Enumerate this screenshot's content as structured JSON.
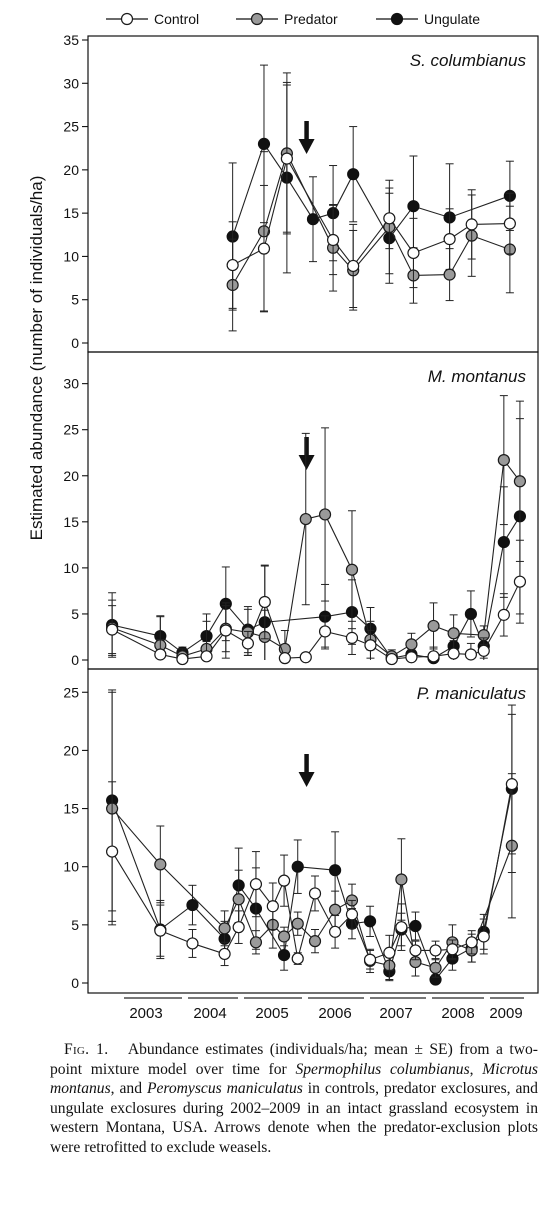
{
  "chart_data": {
    "type": "line",
    "ylabel": "Estimated abundance (number of individuals/ha)",
    "legend": [
      "Control",
      "Predator",
      "Ungulate"
    ],
    "series_styles": {
      "Control": {
        "fill": "#ffffff",
        "stroke": "#1a1a1a"
      },
      "Predator": {
        "fill": "#9a9a9a",
        "stroke": "#1a1a1a"
      },
      "Ungulate": {
        "fill": "#111111",
        "stroke": "#111111"
      }
    },
    "year_labels": [
      "2003",
      "2004",
      "2005",
      "2006",
      "2007",
      "2008",
      "2009"
    ],
    "panels": [
      {
        "title": "S. columbianus",
        "ylim": [
          0,
          35
        ],
        "yticks": [
          0,
          5,
          10,
          15,
          20,
          25,
          30,
          35
        ],
        "arrow_x": 4.84,
        "x": [
          3.0,
          3.78,
          4.35,
          5.0,
          5.5,
          6.0,
          6.9,
          7.5,
          8.4,
          8.95,
          9.9
        ],
        "series": [
          {
            "name": "Control",
            "values": [
              9.0,
              10.9,
              21.3,
              11.9,
              8.9,
              14.4,
              10.4,
              12.0,
              13.7,
              13.8
            ],
            "errors": [
              5.0,
              7.3,
              8.5,
              4.0,
              4.8,
              3.5,
              4.0,
              3.5,
              4.0,
              3.5
            ],
            "idx": [
              0,
              1,
              2,
              4,
              5,
              6,
              7,
              8,
              9,
              10
            ]
          },
          {
            "name": "Predator",
            "values": [
              6.7,
              12.9,
              21.9,
              11.0,
              8.4,
              13.4,
              7.8,
              7.9,
              12.4,
              10.8
            ],
            "errors": [
              5.3,
              9.2,
              9.3,
              5.0,
              4.6,
              5.4,
              3.2,
              3.0,
              4.7,
              5.0
            ],
            "idx": [
              0,
              1,
              2,
              4,
              5,
              6,
              7,
              8,
              9,
              10
            ]
          },
          {
            "name": "Ungulate",
            "values": [
              12.3,
              23.0,
              19.1,
              14.3,
              15.0,
              19.5,
              12.1,
              15.8,
              14.5,
              17.0
            ],
            "errors": [
              8.5,
              9.1,
              11.0,
              4.9,
              5.5,
              5.5,
              5.2,
              5.8,
              6.2,
              4.0
            ],
            "idx": [
              0,
              1,
              2,
              3,
              4,
              5,
              6,
              7,
              8,
              10
            ]
          }
        ]
      },
      {
        "title": "M. montanus",
        "ylim": [
          0,
          33
        ],
        "yticks": [
          0,
          5,
          10,
          15,
          20,
          25,
          30
        ],
        "arrow_x": 4.84,
        "x": [
          0.0,
          1.2,
          1.75,
          2.35,
          2.83,
          3.38,
          3.8,
          4.3,
          4.82,
          5.3,
          5.97,
          6.43,
          6.96,
          7.45,
          8.0,
          8.5,
          8.93,
          9.25,
          9.75,
          10.15
        ],
        "series": [
          {
            "name": "Control",
            "values": [
              3.3,
              0.6,
              0.1,
              0.4,
              3.2,
              1.8,
              6.3,
              0.2,
              0.3,
              3.1,
              2.4,
              1.6,
              0.1,
              0.3,
              0.4,
              0.7,
              0.6,
              1.0,
              4.9,
              8.5
            ],
            "errors": [
              2.6,
              1.6,
              0.3,
              1.6,
              3.0,
              1.3,
              4.0,
              0.3,
              0.3,
              1.7,
              1.8,
              1.6,
              0.2,
              0.8,
              1.0,
              1.4,
              1.2,
              1.4,
              2.3,
              4.5
            ]
          },
          {
            "name": "Predator",
            "values": [
              3.5,
              1.6,
              0.4,
              1.2,
              3.4,
              3.0,
              2.5,
              1.2,
              15.3,
              15.8,
              9.8,
              2.2,
              0.4,
              1.7,
              3.7,
              2.9,
              2.7,
              21.7,
              19.4
            ],
            "errors": [
              3.0,
              3.1,
              0.8,
              3.0,
              2.5,
              2.5,
              2.9,
              2.0,
              9.3,
              9.4,
              6.4,
              2.0,
              0.7,
              1.2,
              2.5,
              2.0,
              1.0,
              7.0,
              8.7
            ],
            "idx": [
              0,
              1,
              2,
              3,
              4,
              5,
              6,
              7,
              8,
              9,
              10,
              11,
              12,
              13,
              14,
              15,
              17,
              18,
              19
            ]
          },
          {
            "name": "Ungulate",
            "values": [
              3.8,
              2.6,
              0.8,
              2.6,
              6.1,
              3.3,
              4.1,
              4.7,
              5.2,
              3.4,
              0.2,
              0.6,
              0.2,
              1.5,
              5.0,
              1.5,
              12.8,
              15.6
            ],
            "errors": [
              3.5,
              2.2,
              0.6,
              2.4,
              4.0,
              2.5,
              6.1,
              3.5,
              3.5,
              2.3,
              0.4,
              0.8,
              0.5,
              1.5,
              2.5,
              1.3,
              6.0,
              10.6
            ],
            "idx": [
              0,
              1,
              2,
              3,
              4,
              5,
              6,
              9,
              10,
              11,
              12,
              13,
              14,
              15,
              16,
              17,
              18,
              19
            ]
          }
        ]
      },
      {
        "title": "P. maniculatus",
        "ylim": [
          0,
          27
        ],
        "yticks": [
          0,
          5,
          10,
          15,
          20,
          25
        ],
        "arrow_x": 4.84,
        "x": [
          0.0,
          1.2,
          2.0,
          2.8,
          3.15,
          3.58,
          4.0,
          4.28,
          4.62,
          5.05,
          5.55,
          5.97,
          6.42,
          6.9,
          7.2,
          7.55,
          8.05,
          8.47,
          8.95,
          9.25,
          9.95
        ],
        "series": [
          {
            "name": "Control",
            "values": [
              11.3,
              4.5,
              3.4,
              2.5,
              4.8,
              8.5,
              6.6,
              8.8,
              2.1,
              7.7,
              4.4,
              5.9,
              2.0,
              2.6,
              4.8,
              2.8,
              2.8,
              2.9,
              3.5,
              4.0,
              17.1
            ],
            "errors": [
              6.0,
              2.2,
              1.2,
              1.0,
              1.4,
              2.8,
              2.0,
              2.2,
              0.5,
              1.5,
              1.4,
              1.2,
              0.8,
              1.5,
              2.0,
              0.8,
              0.8,
              0.8,
              1.0,
              1.5,
              6.0
            ]
          },
          {
            "name": "Predator",
            "values": [
              15.0,
              10.2,
              4.7,
              7.2,
              3.5,
              5.0,
              4.0,
              5.1,
              3.6,
              6.3,
              7.1,
              1.9,
              1.5,
              8.9,
              1.8,
              1.3,
              3.5,
              2.8,
              11.8
            ],
            "errors": [
              10.0,
              3.3,
              1.5,
              2.5,
              1.0,
              2.0,
              0.8,
              1.0,
              1.0,
              1.6,
              1.4,
              1.0,
              1.2,
              3.5,
              1.2,
              0.8,
              1.5,
              1.0,
              6.2
            ],
            "idx": [
              0,
              1,
              3,
              4,
              5,
              6,
              7,
              8,
              9,
              10,
              11,
              12,
              13,
              14,
              15,
              16,
              17,
              18,
              20
            ]
          },
          {
            "name": "Ungulate",
            "values": [
              15.7,
              4.6,
              6.7,
              3.8,
              8.4,
              6.4,
              2.4,
              10.0,
              9.7,
              5.1,
              5.3,
              1.0,
              4.6,
              4.9,
              0.3,
              2.1,
              3.0,
              4.4,
              16.7
            ],
            "errors": [
              9.5,
              2.5,
              1.7,
              1.5,
              3.2,
              3.5,
              1.3,
              2.3,
              3.3,
              1.3,
              1.3,
              0.8,
              1.4,
              1.2,
              0.4,
              1.0,
              1.2,
              1.5,
              7.2
            ],
            "idx": [
              0,
              1,
              2,
              3,
              4,
              5,
              7,
              8,
              10,
              11,
              12,
              13,
              14,
              15,
              16,
              17,
              18,
              19,
              20
            ]
          }
        ]
      }
    ]
  },
  "caption": {
    "fig_label": "Fig. 1.",
    "text_1": "Abundance estimates (individuals/ha; mean ± SE) from a two-point mixture model over time for ",
    "sp1": "Spermophilus columbianus",
    "sep1": ", ",
    "sp2": "Microtus montanus",
    "sep2": ", and ",
    "sp3": "Peromyscus maniculatus",
    "text_2": " in controls, predator exclosures, and ungulate exclosures during 2002–2009 in an intact grassland ecosystem in western Montana, USA. Arrows denote when the predator-exclusion plots were retrofitted to exclude weasels."
  }
}
